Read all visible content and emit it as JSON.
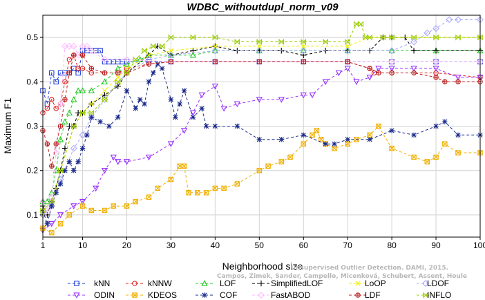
{
  "chart_data": {
    "type": "line",
    "title": "WDBC_withoutdupl_norm_v09",
    "xlabel": "Neighborhood size",
    "ylabel": "Maximum F1",
    "xlim": [
      1,
      100
    ],
    "ylim": [
      0.05,
      0.55
    ],
    "xticks": [
      1,
      10,
      20,
      30,
      40,
      50,
      60,
      70,
      80,
      90,
      100
    ],
    "yticks": [
      0.1,
      0.2,
      0.3,
      0.4,
      0.5
    ],
    "grid": true,
    "legend_position": "bottom",
    "watermark": [
      "Campos, Zimek, Sander, Campello, Micenková, Schubert, Assent, Houle",
      "Unsupervised Outlier Detection. DAMI, 2015."
    ],
    "series": [
      {
        "name": "kNN",
        "color": "#1f3fd6",
        "marker": "square",
        "x": [
          1,
          2,
          3,
          4,
          5,
          6,
          7,
          8,
          9,
          10,
          11,
          12,
          13,
          14,
          15,
          16,
          17,
          18,
          19,
          20,
          25,
          30,
          40,
          50,
          60,
          70,
          80,
          90,
          100
        ],
        "y": [
          0.38,
          0.35,
          0.42,
          0.4,
          0.42,
          0.42,
          0.42,
          0.43,
          0.42,
          0.47,
          0.47,
          0.47,
          0.47,
          0.47,
          0.445,
          0.445,
          0.445,
          0.445,
          0.445,
          0.445,
          0.445,
          0.445,
          0.445,
          0.445,
          0.445,
          0.445,
          0.445,
          0.445,
          0.445
        ]
      },
      {
        "name": "kNNW",
        "color": "#e02020",
        "marker": "circle",
        "x": [
          1,
          2,
          3,
          4,
          5,
          6,
          7,
          8,
          9,
          10,
          12,
          15,
          18,
          20,
          25,
          30,
          40,
          50,
          60,
          70,
          75,
          76,
          80,
          90,
          100
        ],
        "y": [
          0.33,
          0.34,
          0.36,
          0.34,
          0.35,
          0.4,
          0.45,
          0.46,
          0.43,
          0.43,
          0.42,
          0.42,
          0.42,
          0.43,
          0.44,
          0.445,
          0.445,
          0.445,
          0.445,
          0.445,
          0.43,
          0.42,
          0.42,
          0.42,
          0.41
        ]
      },
      {
        "name": "LOF",
        "color": "#22cc22",
        "marker": "triangle",
        "x": [
          1,
          2,
          3,
          4,
          5,
          6,
          7,
          8,
          9,
          10,
          12,
          15,
          18,
          20,
          23,
          25,
          30,
          35,
          40,
          50,
          60,
          70,
          80,
          90,
          100
        ],
        "y": [
          0.13,
          0.13,
          0.15,
          0.2,
          0.27,
          0.31,
          0.33,
          0.36,
          0.38,
          0.38,
          0.38,
          0.4,
          0.43,
          0.44,
          0.45,
          0.46,
          0.46,
          0.46,
          0.47,
          0.47,
          0.47,
          0.47,
          0.47,
          0.47,
          0.47
        ]
      },
      {
        "name": "SimplifiedLOF",
        "color": "#000000",
        "marker": "plus",
        "x": [
          1,
          2,
          3,
          4,
          5,
          6,
          7,
          8,
          9,
          10,
          12,
          15,
          18,
          20,
          25,
          27,
          30,
          35,
          40,
          45,
          50,
          55,
          60,
          65,
          70,
          75,
          78,
          80,
          83,
          85,
          90,
          100
        ],
        "y": [
          0.12,
          0.1,
          0.13,
          0.16,
          0.2,
          0.25,
          0.3,
          0.3,
          0.33,
          0.33,
          0.35,
          0.37,
          0.39,
          0.42,
          0.46,
          0.48,
          0.46,
          0.47,
          0.48,
          0.47,
          0.47,
          0.47,
          0.46,
          0.47,
          0.47,
          0.47,
          0.5,
          0.5,
          0.5,
          0.47,
          0.47,
          0.47
        ]
      },
      {
        "name": "LoOP",
        "color": "#eeee00",
        "marker": "x",
        "x": [
          1,
          3,
          5,
          8,
          10,
          12,
          15,
          18,
          20,
          25,
          30,
          40,
          50,
          60,
          70,
          75,
          80,
          90,
          100
        ],
        "y": [
          0.1,
          0.12,
          0.2,
          0.3,
          0.33,
          0.35,
          0.38,
          0.41,
          0.43,
          0.46,
          0.47,
          0.48,
          0.48,
          0.48,
          0.48,
          0.5,
          0.5,
          0.5,
          0.5
        ]
      },
      {
        "name": "LDOF",
        "color": "#aaaaff",
        "marker": "diamond",
        "x": [
          1,
          3,
          5,
          8,
          10,
          12,
          15,
          20,
          25,
          30,
          40,
          50,
          60,
          70,
          80,
          85,
          88,
          90,
          93,
          95,
          100
        ],
        "y": [
          0.1,
          0.12,
          0.18,
          0.25,
          0.28,
          0.32,
          0.36,
          0.42,
          0.45,
          0.46,
          0.47,
          0.47,
          0.47,
          0.47,
          0.47,
          0.49,
          0.51,
          0.52,
          0.54,
          0.54,
          0.54
        ]
      },
      {
        "name": "ODIN",
        "color": "#9933ff",
        "marker": "invtriangle",
        "x": [
          1,
          3,
          5,
          8,
          10,
          13,
          15,
          17,
          18,
          20,
          25,
          30,
          33,
          35,
          37,
          40,
          42,
          45,
          50,
          55,
          60,
          62,
          65,
          68,
          70,
          72,
          75,
          77,
          80,
          85,
          90,
          95,
          100
        ],
        "y": [
          0.065,
          0.08,
          0.1,
          0.12,
          0.13,
          0.16,
          0.2,
          0.23,
          0.22,
          0.22,
          0.23,
          0.26,
          0.29,
          0.33,
          0.37,
          0.39,
          0.34,
          0.35,
          0.36,
          0.36,
          0.37,
          0.37,
          0.4,
          0.42,
          0.43,
          0.4,
          0.41,
          0.43,
          0.43,
          0.43,
          0.43,
          0.41,
          0.41
        ]
      },
      {
        "name": "KDEOS",
        "color": "#f0b000",
        "marker": "squarex",
        "x": [
          1,
          3,
          5,
          7,
          10,
          12,
          15,
          17,
          20,
          22,
          25,
          27,
          30,
          32,
          33,
          34,
          36,
          38,
          40,
          42,
          45,
          50,
          52,
          55,
          57,
          60,
          62,
          63,
          64,
          65,
          67,
          70,
          72,
          75,
          77,
          80,
          85,
          88,
          90,
          92,
          95,
          100
        ],
        "y": [
          0.07,
          0.06,
          0.08,
          0.1,
          0.12,
          0.11,
          0.11,
          0.12,
          0.12,
          0.13,
          0.14,
          0.16,
          0.18,
          0.21,
          0.21,
          0.15,
          0.15,
          0.15,
          0.16,
          0.16,
          0.17,
          0.2,
          0.21,
          0.22,
          0.23,
          0.26,
          0.28,
          0.29,
          0.27,
          0.26,
          0.25,
          0.26,
          0.27,
          0.28,
          0.3,
          0.25,
          0.23,
          0.22,
          0.23,
          0.26,
          0.24,
          0.24
        ]
      },
      {
        "name": "COF",
        "color": "#1a2a8a",
        "marker": "asterisk",
        "x": [
          1,
          2,
          3,
          4,
          5,
          6,
          7,
          8,
          9,
          10,
          11,
          12,
          14,
          16,
          18,
          20,
          22,
          23,
          24,
          25,
          26,
          27,
          28,
          30,
          31,
          32,
          33,
          35,
          37,
          38,
          40,
          45,
          50,
          55,
          60,
          65,
          67,
          70,
          75,
          80,
          85,
          90,
          92,
          95,
          100
        ],
        "y": [
          0.11,
          0.08,
          0.12,
          0.15,
          0.17,
          0.2,
          0.22,
          0.2,
          0.22,
          0.25,
          0.28,
          0.32,
          0.31,
          0.3,
          0.32,
          0.38,
          0.34,
          0.36,
          0.35,
          0.4,
          0.42,
          0.44,
          0.43,
          0.36,
          0.32,
          0.35,
          0.38,
          0.32,
          0.34,
          0.3,
          0.3,
          0.3,
          0.27,
          0.27,
          0.28,
          0.26,
          0.26,
          0.27,
          0.27,
          0.29,
          0.28,
          0.3,
          0.31,
          0.28,
          0.28
        ]
      },
      {
        "name": "FastABOD",
        "color": "#ffbbff",
        "marker": "diamond",
        "x": [
          1,
          2,
          3,
          4,
          5,
          6,
          7,
          8,
          9,
          10,
          11,
          12,
          15,
          20,
          30,
          40,
          50,
          60,
          70,
          80,
          90,
          100
        ],
        "y": [
          0.13,
          0.11,
          0.14,
          0.24,
          0.35,
          0.48,
          0.48,
          0.48,
          0.46,
          0.48,
          0.48,
          0.47,
          0.45,
          0.45,
          0.445,
          0.445,
          0.445,
          0.445,
          0.445,
          0.445,
          0.445,
          0.445
        ]
      },
      {
        "name": "LDF",
        "color": "#bb2222",
        "marker": "circleplus",
        "x": [
          1,
          2,
          3,
          4,
          5,
          6,
          7,
          8,
          10,
          12,
          15,
          18,
          20,
          25,
          30,
          40,
          50,
          60,
          70,
          75,
          77,
          80,
          85,
          90,
          92,
          95,
          100
        ],
        "y": [
          0.29,
          0.26,
          0.21,
          0.26,
          0.3,
          0.36,
          0.42,
          0.46,
          0.46,
          0.43,
          0.42,
          0.42,
          0.42,
          0.44,
          0.445,
          0.445,
          0.445,
          0.445,
          0.445,
          0.43,
          0.42,
          0.42,
          0.42,
          0.41,
          0.4,
          0.4,
          0.4
        ]
      },
      {
        "name": "INFLO",
        "color": "#99cc00",
        "marker": "hourglass",
        "x": [
          1,
          3,
          5,
          8,
          10,
          12,
          15,
          18,
          20,
          22,
          24,
          26,
          28,
          30,
          35,
          40,
          45,
          50,
          55,
          60,
          65,
          70,
          72,
          73,
          74,
          75,
          78,
          80,
          85,
          90,
          95,
          100
        ],
        "y": [
          0.11,
          0.13,
          0.2,
          0.3,
          0.33,
          0.33,
          0.36,
          0.4,
          0.42,
          0.45,
          0.47,
          0.48,
          0.48,
          0.5,
          0.5,
          0.5,
          0.49,
          0.49,
          0.49,
          0.49,
          0.49,
          0.49,
          0.53,
          0.53,
          0.5,
          0.5,
          0.5,
          0.5,
          0.5,
          0.5,
          0.5,
          0.5
        ]
      }
    ]
  }
}
